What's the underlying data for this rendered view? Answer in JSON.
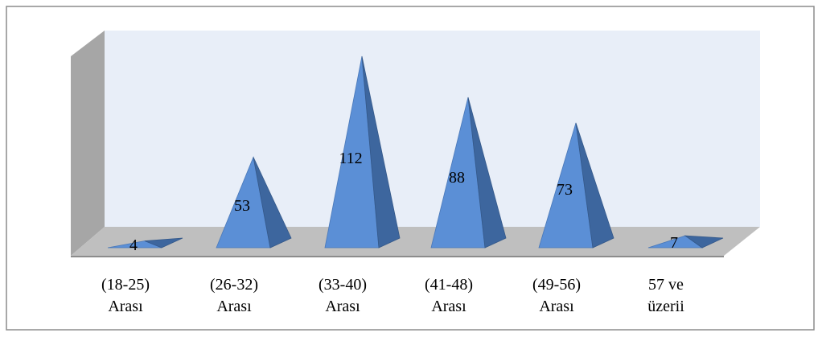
{
  "chart_data": {
    "type": "pyramid3d",
    "categories": [
      "(18-25)\nArası",
      "(26-32)\nArası",
      "(33-40)\nArası",
      "(41-48)\nArası",
      "(49-56)\nArası",
      "57 ve\nüzerii"
    ],
    "values": [
      4,
      53,
      112,
      88,
      73,
      7
    ],
    "color": "#5b8fd6"
  }
}
